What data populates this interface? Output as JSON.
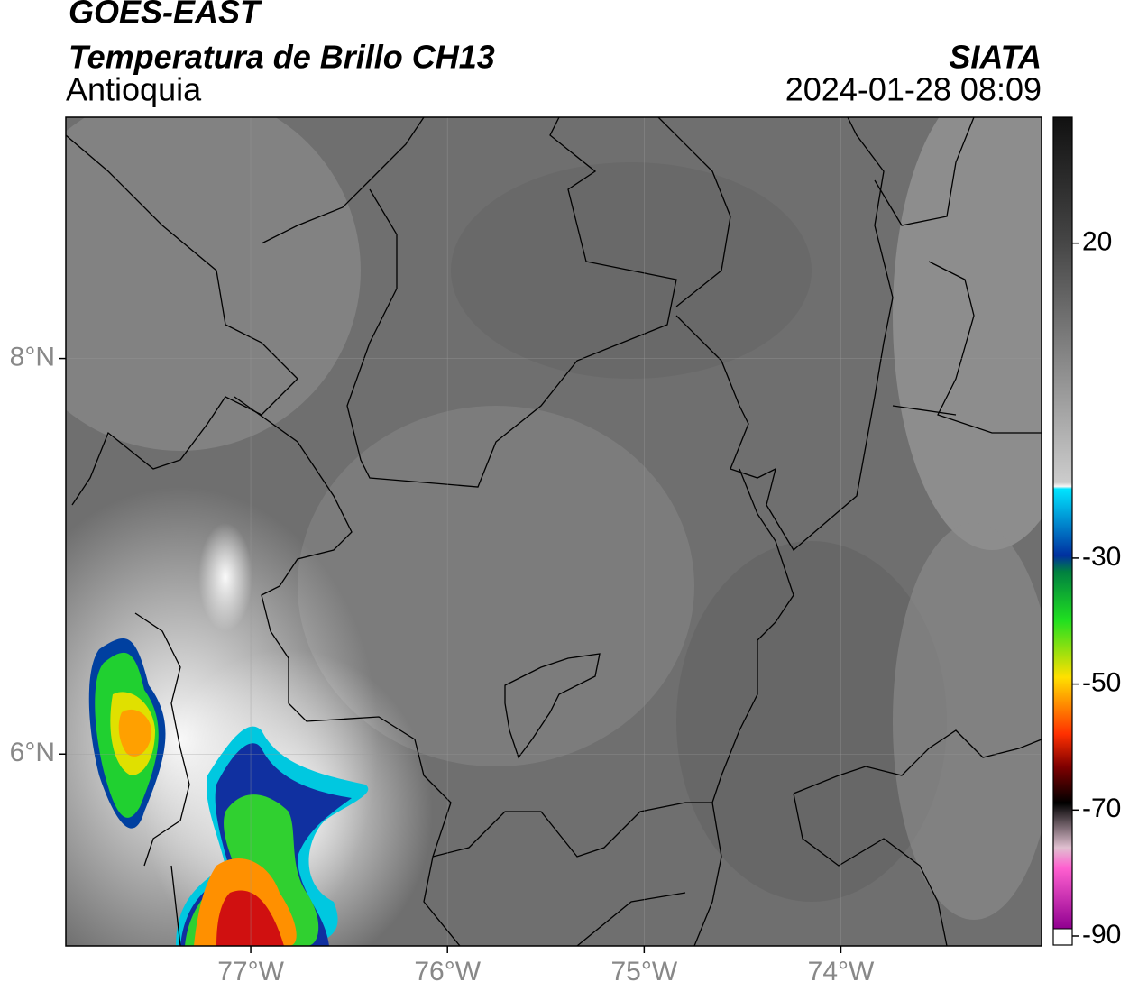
{
  "header": {
    "title": "GOES-EAST",
    "product": "Temperatura de Brillo CH13",
    "region": "Antioquia",
    "source": "SIATA",
    "datetime": "2024-01-28 08:09"
  },
  "map": {
    "xlim": [
      -77.94,
      -72.98
    ],
    "ylim": [
      5.03,
      9.22
    ],
    "xticks": [
      {
        "value": -77,
        "label": "77°W"
      },
      {
        "value": -76,
        "label": "76°W"
      },
      {
        "value": -75,
        "label": "75°W"
      },
      {
        "value": -74,
        "label": "74°W"
      }
    ],
    "yticks": [
      {
        "value": 6,
        "label": "6°N"
      },
      {
        "value": 8,
        "label": "8°N"
      }
    ],
    "grid": true
  },
  "colorbar": {
    "lim": [
      -90,
      40
    ],
    "ticks": [
      20,
      -30,
      -50,
      -70,
      -90
    ]
  }
}
